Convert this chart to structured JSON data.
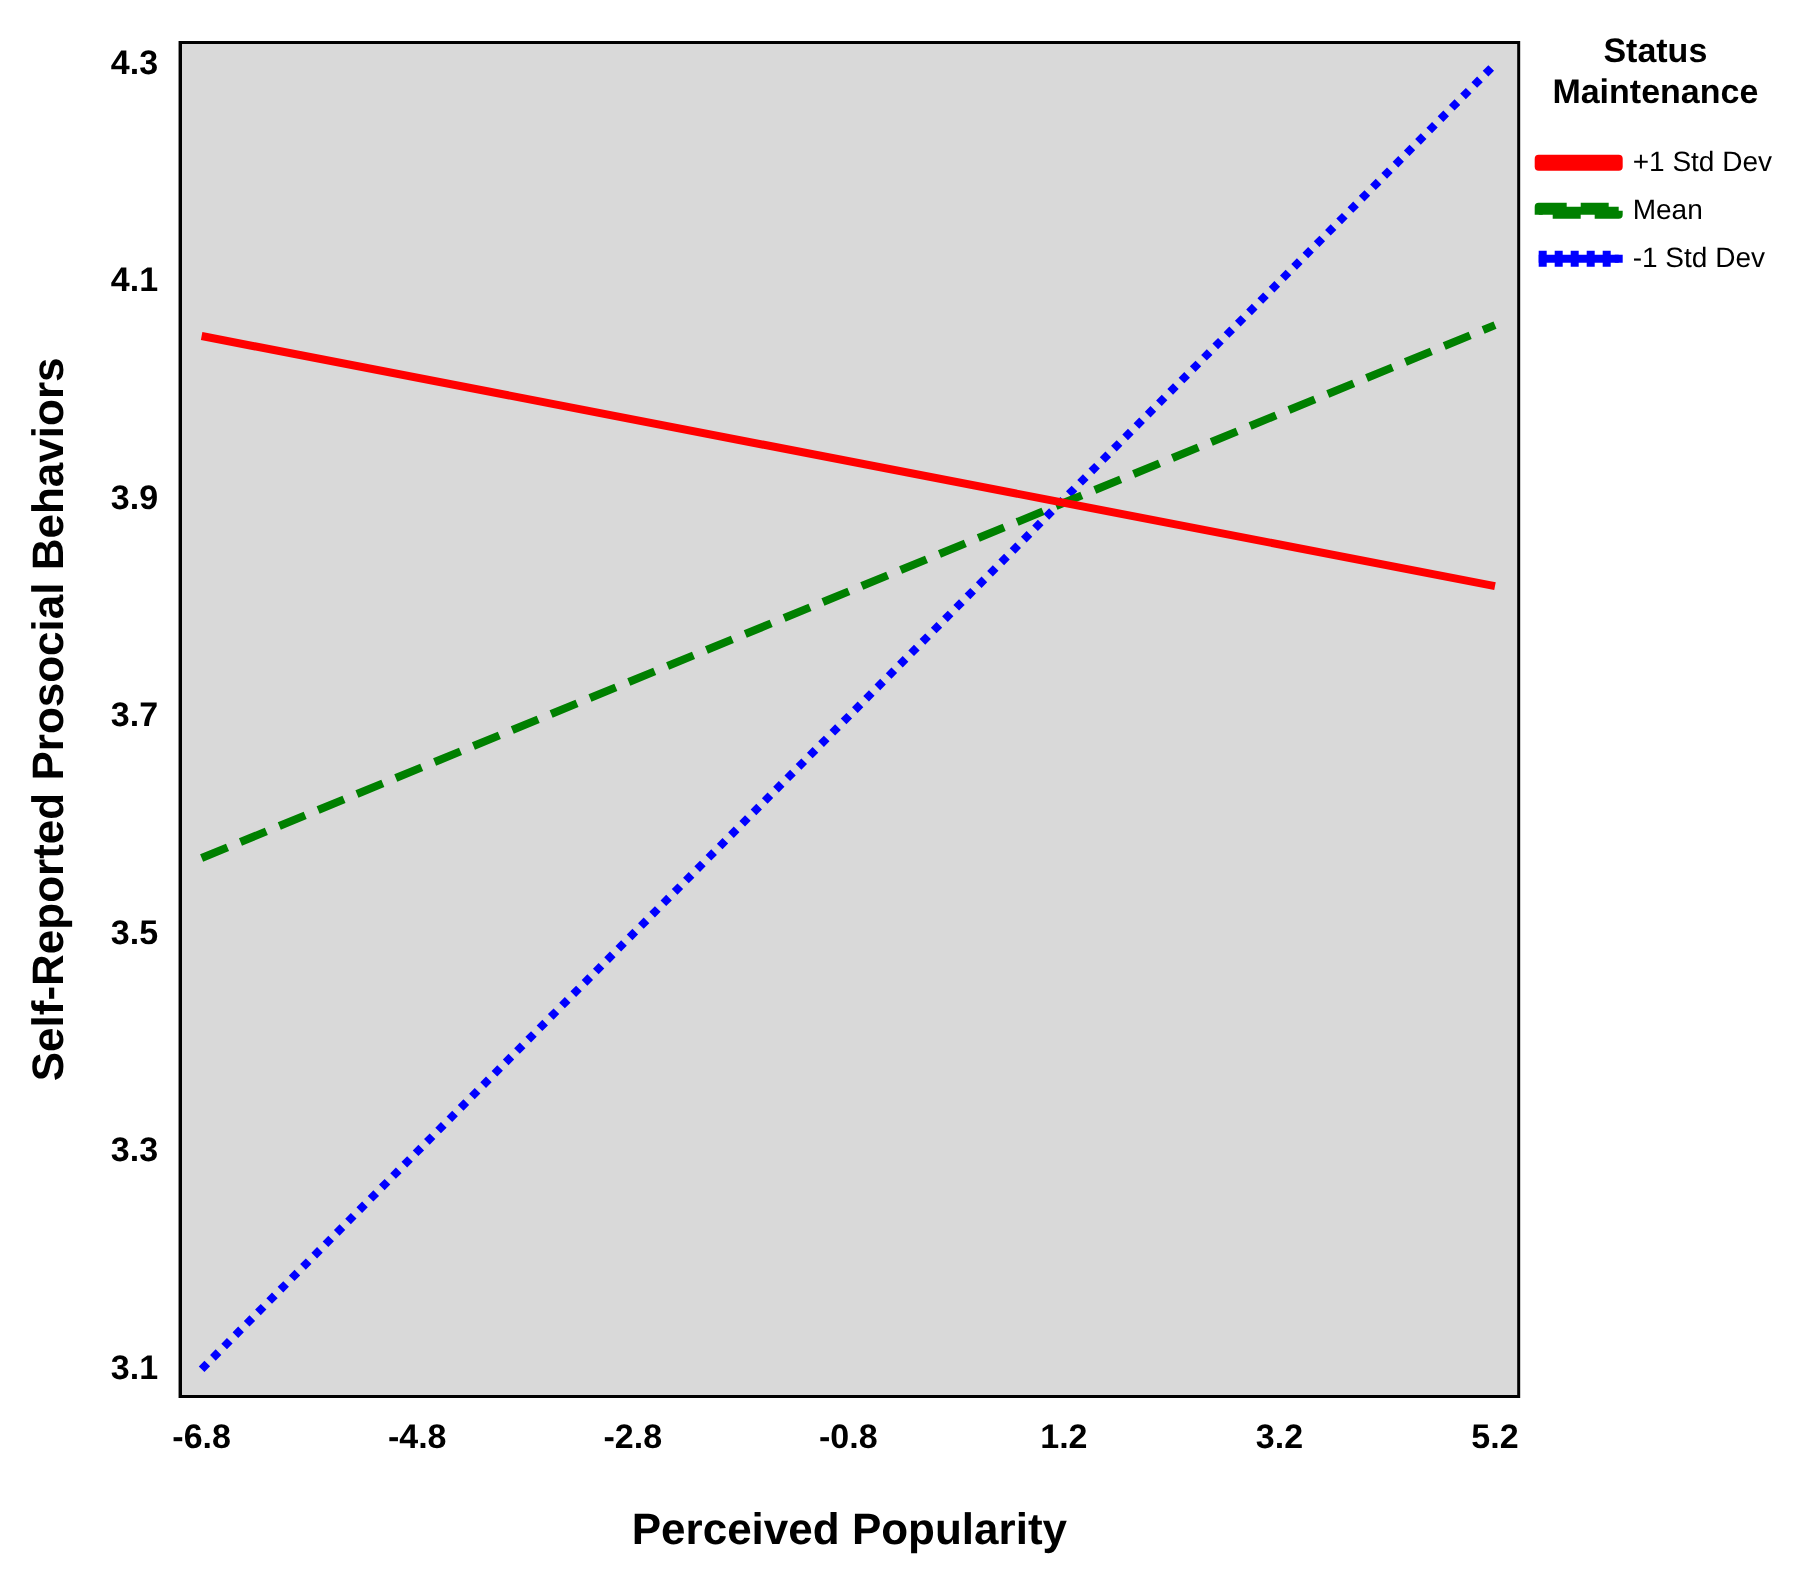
{
  "chart_data": {
    "type": "line",
    "xlabel": "Perceived Popularity",
    "ylabel": "Self-Reported Prosocial Behaviors",
    "legend_title": "Status Maintenance",
    "legend": "top right",
    "x": [
      -6.8,
      5.2
    ],
    "series": [
      {
        "name": "+1 Std Dev",
        "color": "#ff0000",
        "values": [
          4.05,
          3.82
        ],
        "line_style": "solid"
      },
      {
        "name": "Mean",
        "color": "#008000",
        "values": [
          3.57,
          4.06
        ],
        "line_style": "dashed"
      },
      {
        "name": "-1 Std Dev",
        "color": "#0000ff",
        "values": [
          3.1,
          4.3
        ],
        "line_style": "dotted"
      }
    ],
    "xlim": [
      -7.0,
      5.42
    ],
    "xticks": [
      -6.8,
      -4.8,
      -2.8,
      -0.8,
      1.2,
      3.2,
      5.2
    ],
    "ylim": [
      3.075,
      4.32
    ],
    "yticks": [
      3.1,
      3.3,
      3.5,
      3.7,
      3.9,
      4.1,
      4.3
    ],
    "grid": false,
    "marker": "none"
  }
}
